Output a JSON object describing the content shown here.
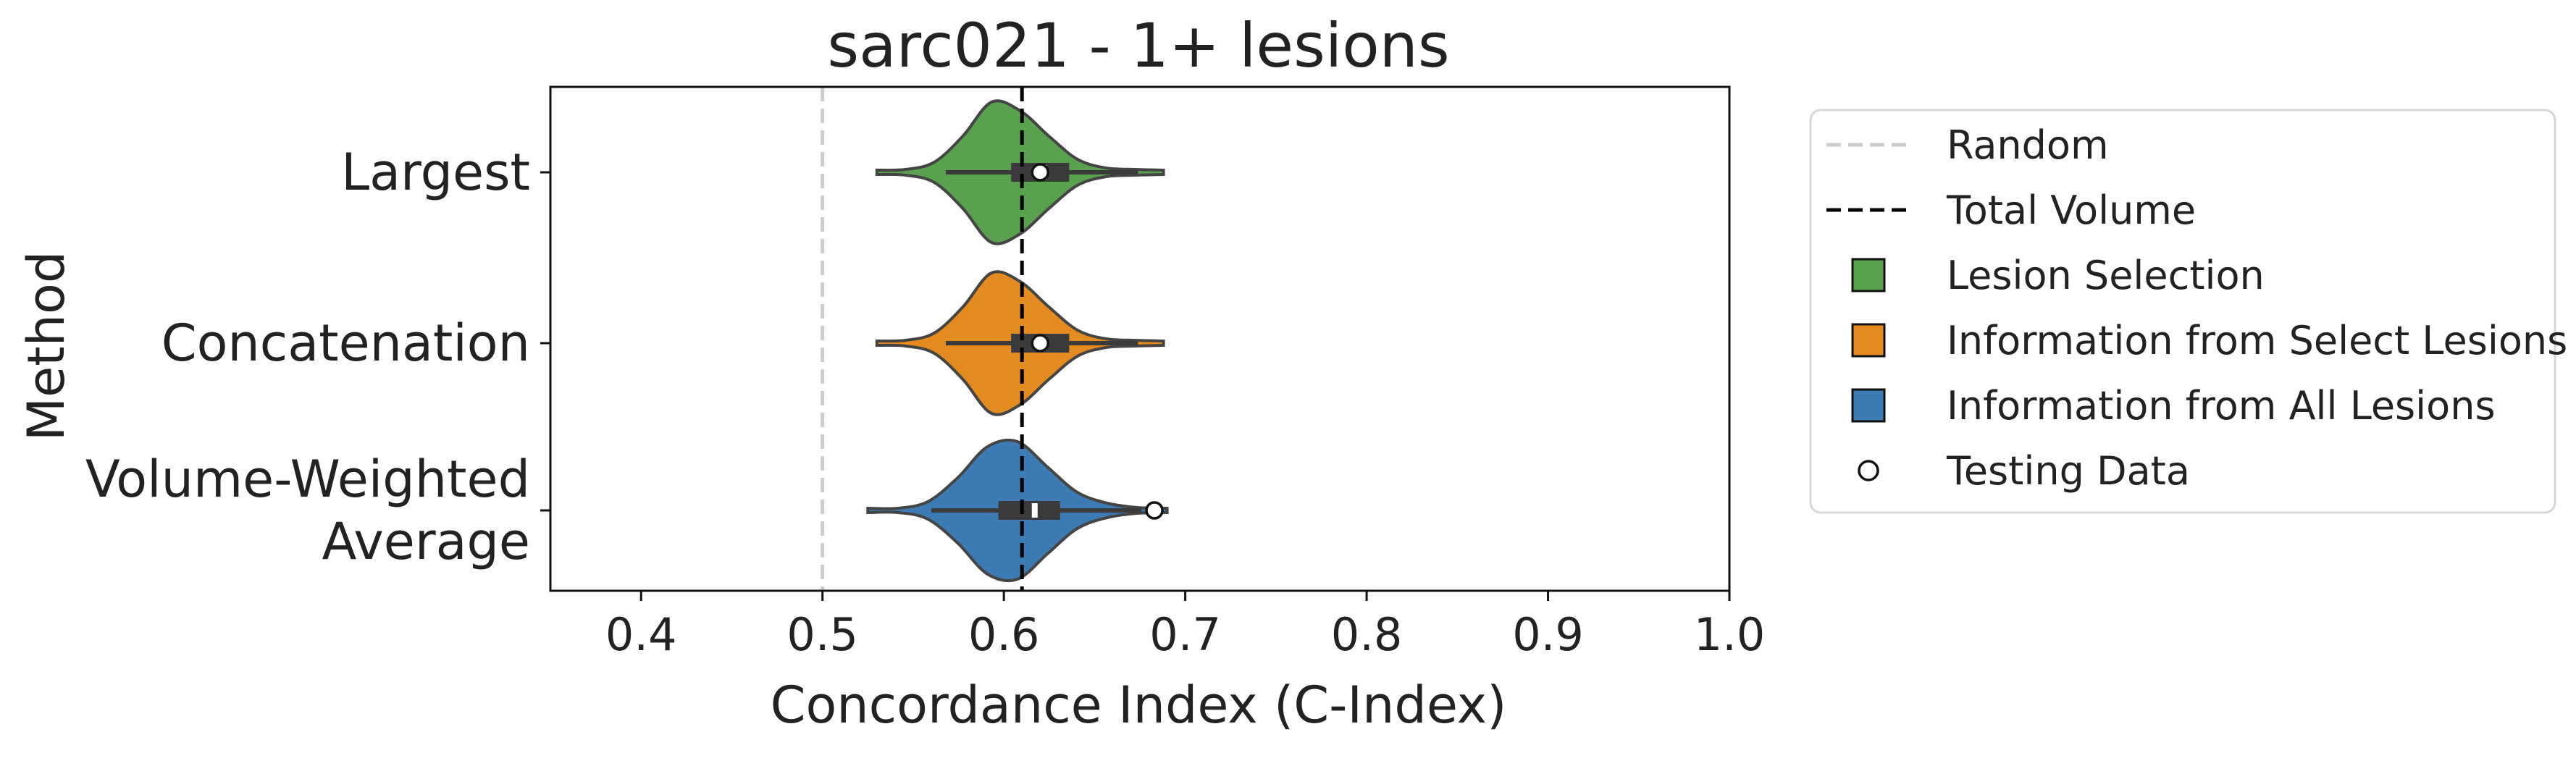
{
  "chart_data": {
    "type": "violin",
    "title": "sarc021 - 1+ lesions",
    "xlabel": "Concordance Index (C-Index)",
    "ylabel": "Method",
    "xlim": [
      0.35,
      1.0
    ],
    "xticks": [
      "0.4",
      "0.5",
      "0.6",
      "0.7",
      "0.8",
      "0.9",
      "1.0"
    ],
    "grid": false,
    "legend_position": "outside-right",
    "reference_lines": [
      {
        "name": "Random",
        "x": 0.5,
        "color": "#cccccc",
        "style": "dashed"
      },
      {
        "name": "Total Volume",
        "x": 0.61,
        "color": "#000000",
        "style": "dashed"
      }
    ],
    "categories": [
      {
        "lines": [
          "Largest"
        ],
        "group": "Lesion Selection",
        "color": "#59a14f",
        "min": 0.53,
        "max": 0.688,
        "q1": 0.604,
        "median": 0.622,
        "q3": 0.636,
        "whisker_low": 0.568,
        "whisker_high": 0.674,
        "test": 0.62,
        "shape": [
          0.03,
          0.04,
          0.14,
          0.5,
          0.97,
          0.85,
          0.5,
          0.18,
          0.06,
          0.04,
          0.03
        ]
      },
      {
        "lines": [
          "Concatenation"
        ],
        "group": "Information from Select Lesions",
        "color": "#e58a1f",
        "min": 0.53,
        "max": 0.688,
        "q1": 0.604,
        "median": 0.622,
        "q3": 0.636,
        "whisker_low": 0.568,
        "whisker_high": 0.674,
        "test": 0.62,
        "shape": [
          0.03,
          0.04,
          0.14,
          0.5,
          0.97,
          0.85,
          0.5,
          0.18,
          0.06,
          0.04,
          0.03
        ]
      },
      {
        "lines": [
          "Volume-Weighted",
          "Average"
        ],
        "group": "Information from All Lesions",
        "color": "#3d7bb4",
        "min": 0.525,
        "max": 0.69,
        "q1": 0.597,
        "median": 0.617,
        "q3": 0.631,
        "whisker_low": 0.56,
        "whisker_high": 0.676,
        "test": 0.683,
        "shape": [
          0.03,
          0.03,
          0.12,
          0.45,
          0.88,
          0.95,
          0.6,
          0.25,
          0.1,
          0.04,
          0.03
        ]
      }
    ],
    "legend": [
      {
        "kind": "line",
        "label": "Random",
        "color": "#cccccc"
      },
      {
        "kind": "line",
        "label": "Total Volume",
        "color": "#000000"
      },
      {
        "kind": "patch",
        "label": "Lesion Selection",
        "color": "#59a14f"
      },
      {
        "kind": "patch",
        "label": "Information from Select Lesions",
        "color": "#e58a1f"
      },
      {
        "kind": "patch",
        "label": "Information from All Lesions",
        "color": "#3d7bb4"
      },
      {
        "kind": "marker",
        "label": "Testing Data",
        "color": "#ffffff"
      }
    ]
  }
}
